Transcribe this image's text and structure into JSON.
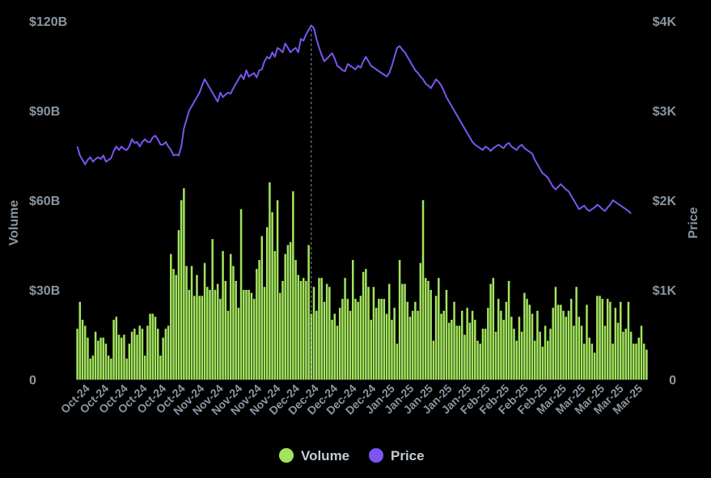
{
  "chart_data": {
    "type": "bar",
    "combo_series_type": "line",
    "colors": {
      "volume": "#a3e45e",
      "price": "#7b55f0",
      "tick": "#8a96a3",
      "crosshair": "#8a96a3"
    },
    "y_left": {
      "title": "Volume",
      "ylim": [
        0,
        120
      ],
      "ticks": [
        0,
        30,
        60,
        90,
        120
      ],
      "tick_labels": [
        "0",
        "$30B",
        "$60B",
        "$90B",
        "$120B"
      ],
      "unit": "B USD"
    },
    "y_right": {
      "title": "Price",
      "ylim": [
        0,
        4000
      ],
      "ticks": [
        0,
        1000,
        2000,
        3000,
        4000
      ],
      "tick_labels": [
        "0",
        "$1K",
        "$2K",
        "$3K",
        "$4K"
      ],
      "unit": "USD"
    },
    "x_tick_labels": [
      "Oct-24",
      "Oct-24",
      "Oct-24",
      "Oct-24",
      "Oct-24",
      "Oct-24",
      "Nov-24",
      "Nov-24",
      "Nov-24",
      "Nov-24",
      "Nov-24",
      "Dec-24",
      "Dec-24",
      "Dec-24",
      "Dec-24",
      "Dec-24",
      "Jan-25",
      "Jan-25",
      "Jan-25",
      "Jan-25",
      "Jan-25",
      "Feb-25",
      "Feb-25",
      "Feb-25",
      "Feb-25",
      "Mar-25",
      "Mar-25",
      "Mar-25",
      "Mar-25",
      "Mar-25"
    ],
    "legend": {
      "placement": "bottom-center",
      "entries": [
        {
          "name": "Volume",
          "series": "volume"
        },
        {
          "name": "Price",
          "series": "price"
        }
      ]
    },
    "crosshair_index": 90,
    "grid": false,
    "series": [
      {
        "name": "Volume",
        "type": "bar",
        "axis": "left",
        "values": [
          17,
          26,
          20,
          18,
          14,
          7,
          8,
          16,
          13,
          14,
          14,
          12,
          8,
          7,
          20,
          21,
          15,
          14,
          15,
          7,
          12,
          16,
          17,
          15,
          18,
          17,
          8,
          18,
          22,
          22,
          21,
          17,
          8,
          14,
          17,
          18,
          42,
          37,
          35,
          50,
          60,
          64,
          38,
          30,
          38,
          28,
          35,
          28,
          28,
          39,
          31,
          30,
          47,
          30,
          32,
          27,
          43,
          33,
          23,
          42,
          38,
          33,
          24,
          57,
          30,
          30,
          30,
          29,
          27,
          37,
          40,
          48,
          31,
          51,
          66,
          56,
          43,
          60,
          29,
          33,
          42,
          45,
          46,
          63,
          40,
          35,
          33,
          34,
          33,
          45,
          22,
          31,
          23,
          34,
          34,
          26,
          32,
          31,
          20,
          22,
          18,
          24,
          27,
          34,
          27,
          23,
          40,
          27,
          26,
          28,
          36,
          37,
          31,
          20,
          31,
          24,
          27,
          27,
          27,
          22,
          32,
          20,
          24,
          12,
          40,
          32,
          32,
          26,
          21,
          23,
          26,
          23,
          39,
          60,
          34,
          33,
          30,
          13,
          28,
          34,
          22,
          23,
          30,
          19,
          20,
          26,
          18,
          18,
          23,
          15,
          24,
          19,
          23,
          20,
          13,
          12,
          17,
          17,
          24,
          32,
          34,
          16,
          27,
          23,
          20,
          26,
          33,
          21,
          17,
          13,
          21,
          16,
          29,
          27,
          25,
          22,
          13,
          23,
          16,
          11,
          18,
          13,
          17,
          24,
          31,
          25,
          25,
          23,
          21,
          23,
          27,
          18,
          31,
          21,
          18,
          12,
          25,
          14,
          12,
          9,
          28,
          28,
          27,
          18,
          27,
          26,
          12,
          24,
          19,
          26,
          16,
          17,
          26,
          16,
          12,
          12,
          14,
          18,
          12,
          10
        ]
      },
      {
        "name": "Price",
        "type": "line",
        "axis": "right",
        "values": [
          2600,
          2500,
          2450,
          2400,
          2450,
          2480,
          2430,
          2460,
          2480,
          2460,
          2500,
          2430,
          2450,
          2470,
          2550,
          2600,
          2560,
          2600,
          2570,
          2560,
          2600,
          2680,
          2640,
          2650,
          2600,
          2650,
          2680,
          2650,
          2650,
          2700,
          2720,
          2680,
          2620,
          2620,
          2650,
          2600,
          2560,
          2500,
          2510,
          2500,
          2600,
          2800,
          2900,
          3000,
          3050,
          3100,
          3150,
          3200,
          3280,
          3350,
          3300,
          3250,
          3200,
          3150,
          3100,
          3200,
          3150,
          3180,
          3200,
          3190,
          3250,
          3300,
          3350,
          3400,
          3350,
          3450,
          3380,
          3400,
          3420,
          3370,
          3450,
          3460,
          3550,
          3600,
          3580,
          3650,
          3600,
          3700,
          3680,
          3650,
          3750,
          3700,
          3650,
          3680,
          3700,
          3650,
          3800,
          3780,
          3850,
          3900,
          3950,
          3920,
          3800,
          3700,
          3620,
          3550,
          3580,
          3610,
          3640,
          3580,
          3500,
          3480,
          3450,
          3440,
          3520,
          3500,
          3480,
          3460,
          3500,
          3480,
          3550,
          3600,
          3550,
          3500,
          3480,
          3460,
          3440,
          3420,
          3400,
          3380,
          3420,
          3500,
          3600,
          3700,
          3720,
          3680,
          3650,
          3600,
          3550,
          3500,
          3450,
          3420,
          3380,
          3350,
          3300,
          3280,
          3250,
          3300,
          3350,
          3320,
          3280,
          3220,
          3150,
          3100,
          3050,
          3000,
          2950,
          2900,
          2850,
          2800,
          2750,
          2700,
          2650,
          2620,
          2600,
          2580,
          2560,
          2600,
          2580,
          2550,
          2580,
          2600,
          2620,
          2600,
          2580,
          2620,
          2640,
          2600,
          2580,
          2560,
          2600,
          2620,
          2580,
          2560,
          2540,
          2520,
          2450,
          2400,
          2350,
          2300,
          2280,
          2250,
          2200,
          2150,
          2120,
          2150,
          2180,
          2150,
          2120,
          2100,
          2050,
          2000,
          1950,
          1900,
          1920,
          1940,
          1900,
          1880,
          1900,
          1920,
          1950,
          1930,
          1900,
          1880,
          1920,
          1950,
          2000,
          1980,
          1960,
          1940,
          1920,
          1900,
          1880,
          1850
        ]
      }
    ]
  }
}
